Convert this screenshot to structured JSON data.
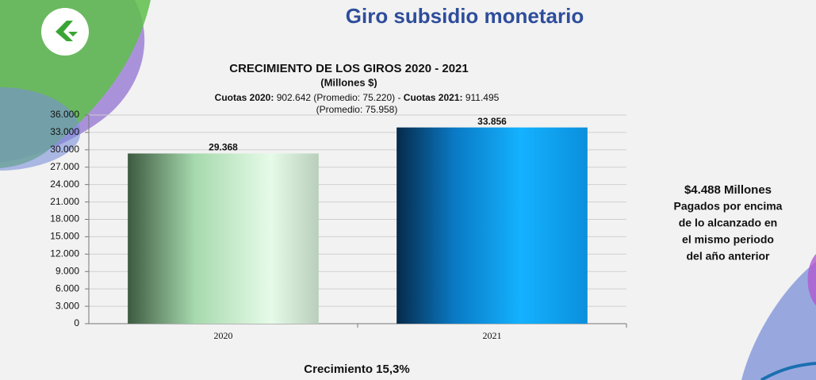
{
  "slide_title": "Giro subsidio monetario",
  "chart_data": {
    "type": "bar",
    "title": "CRECIMIENTO DE LOS GIROS 2020 - 2021",
    "subtitle": "(Millones $)",
    "annotation_line1": [
      {
        "text": "Cuotas 2020:",
        "bold": true
      },
      {
        "text": " 902.642 (Promedio: 75.220)  -  ",
        "bold": false
      },
      {
        "text": "Cuotas 2021:",
        "bold": true
      },
      {
        "text": " 911.495",
        "bold": false
      }
    ],
    "annotation_line2": "(Promedio: 75.958)",
    "categories": [
      "2020",
      "2021"
    ],
    "values": [
      29368,
      33856
    ],
    "value_labels": [
      "29.368",
      "33.856"
    ],
    "ylim": [
      0,
      36000
    ],
    "yticks": [
      {
        "value": 0,
        "label": "0"
      },
      {
        "value": 3000,
        "label": "3.000"
      },
      {
        "value": 6000,
        "label": "6.000"
      },
      {
        "value": 9000,
        "label": "9.000"
      },
      {
        "value": 12000,
        "label": "12.000"
      },
      {
        "value": 15000,
        "label": "15.000"
      },
      {
        "value": 18000,
        "label": "18.000"
      },
      {
        "value": 21000,
        "label": "21.000"
      },
      {
        "value": 24000,
        "label": "24.000"
      },
      {
        "value": 27000,
        "label": "27.000"
      },
      {
        "value": 30000,
        "label": "30.000"
      },
      {
        "value": 33000,
        "label": "33.000"
      },
      {
        "value": 36000,
        "label": "36.000"
      }
    ],
    "grid": true,
    "footer": "Crecimiento  15,3%"
  },
  "side_note": {
    "headline": "$4.488 Millones",
    "lines": [
      "Pagados por encima",
      "de lo alcanzado en",
      "el mismo periodo",
      "del año anterior"
    ]
  }
}
